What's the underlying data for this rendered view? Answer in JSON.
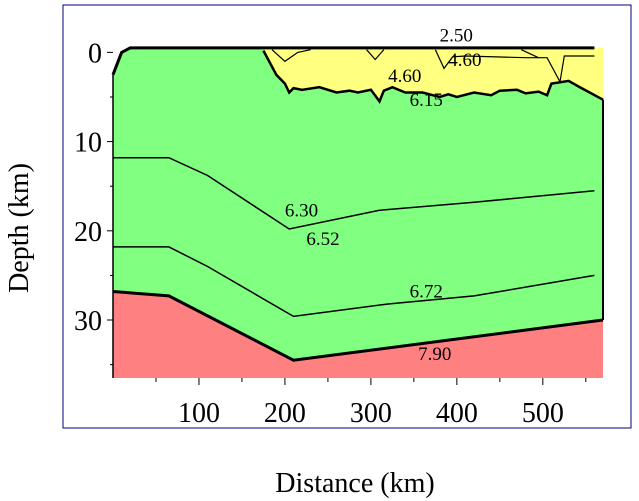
{
  "figure": {
    "xlabel": "Distance (km)",
    "ylabel": "Depth (km)"
  },
  "chart_data": {
    "type": "area",
    "xlabel": "Distance (km)",
    "ylabel": "Depth (km)",
    "xlim": [
      0,
      570
    ],
    "ylim": [
      36.5,
      -1.5
    ],
    "x_ticks": [
      100,
      200,
      300,
      400,
      500
    ],
    "y_ticks": [
      0,
      10,
      20,
      30
    ],
    "y_inverted": true,
    "grid": false,
    "legend": "none",
    "colors": {
      "sediment": "#ffff80",
      "crust": "#80ff80",
      "mantle": "#ff8080"
    },
    "layers": [
      {
        "color": "sediment",
        "top": "surface",
        "velocity_labels": [
          "2.50",
          "4.60",
          "4.60"
        ]
      },
      {
        "color": "crust",
        "velocity_labels": [
          "6.15",
          "6.30",
          "6.52",
          "6.72"
        ]
      },
      {
        "color": "mantle",
        "velocity_labels": [
          "7.90"
        ]
      }
    ],
    "boundaries": [
      {
        "name": "surface",
        "points": [
          [
            0,
            2.5
          ],
          [
            10,
            0
          ],
          [
            20,
            -0.5
          ],
          [
            175,
            -0.5
          ],
          [
            560,
            -0.5
          ]
        ]
      },
      {
        "name": "sediment-base",
        "points": [
          [
            175,
            -0.2
          ],
          [
            190,
            2.5
          ],
          [
            200,
            3.5
          ],
          [
            205,
            4.5
          ],
          [
            210,
            4
          ],
          [
            220,
            4.2
          ],
          [
            240,
            3.9
          ],
          [
            260,
            4.5
          ],
          [
            275,
            4.3
          ],
          [
            285,
            4.5
          ],
          [
            300,
            4.2
          ],
          [
            310,
            5.5
          ],
          [
            315,
            4.3
          ],
          [
            325,
            3.9
          ],
          [
            340,
            4.5
          ],
          [
            360,
            4.5
          ],
          [
            380,
            5
          ],
          [
            390,
            4.7
          ],
          [
            400,
            5
          ],
          [
            420,
            4.5
          ],
          [
            440,
            4.8
          ],
          [
            450,
            4.3
          ],
          [
            470,
            4.2
          ],
          [
            480,
            4.6
          ],
          [
            495,
            4.4
          ],
          [
            505,
            4.8
          ],
          [
            510,
            3.5
          ],
          [
            530,
            3.2
          ],
          [
            545,
            4
          ],
          [
            570,
            5.3
          ]
        ]
      },
      {
        "name": "6.15-6.30",
        "points": [
          [
            0,
            11.8
          ],
          [
            65,
            11.8
          ],
          [
            110,
            13.8
          ],
          [
            205,
            19.8
          ],
          [
            310,
            17.7
          ],
          [
            420,
            16.8
          ],
          [
            560,
            15.5
          ]
        ]
      },
      {
        "name": "6.52-6.72",
        "points": [
          [
            0,
            21.8
          ],
          [
            65,
            21.8
          ],
          [
            110,
            24
          ],
          [
            210,
            29.6
          ],
          [
            320,
            28.2
          ],
          [
            420,
            27.3
          ],
          [
            560,
            25
          ]
        ]
      },
      {
        "name": "moho",
        "points": [
          [
            0,
            26.8
          ],
          [
            65,
            27.3
          ],
          [
            210,
            34.5
          ],
          [
            570,
            30
          ]
        ]
      }
    ],
    "sediment_detail_lines": [
      {
        "points": [
          [
            185,
            -0.3
          ],
          [
            200,
            1
          ],
          [
            215,
            0
          ],
          [
            230,
            -0.3
          ]
        ]
      },
      {
        "points": [
          [
            295,
            -0.3
          ],
          [
            305,
            0.8
          ],
          [
            315,
            -0.3
          ]
        ]
      },
      {
        "points": [
          [
            375,
            -0.3
          ],
          [
            385,
            1.8
          ],
          [
            395,
            0.5
          ],
          [
            410,
            0.4
          ],
          [
            480,
            0.6
          ],
          [
            505,
            0.6
          ],
          [
            520,
            3.3
          ],
          [
            525,
            0.4
          ],
          [
            560,
            0.4
          ]
        ]
      },
      {
        "points": [
          [
            475,
            -0.3
          ],
          [
            495,
            0.6
          ]
        ]
      }
    ],
    "annotations": [
      {
        "text": "2.50",
        "x": 380,
        "y": -1.2
      },
      {
        "text": "4.60",
        "x": 390,
        "y": 1.5
      },
      {
        "text": "4.60",
        "x": 320,
        "y": 3.3
      },
      {
        "text": "6.15",
        "x": 345,
        "y": 6.0
      },
      {
        "text": "6.30",
        "x": 200,
        "y": 18.4
      },
      {
        "text": "6.52",
        "x": 225,
        "y": 21.6
      },
      {
        "text": "6.72",
        "x": 345,
        "y": 27.5
      },
      {
        "text": "7.90",
        "x": 355,
        "y": 34.5
      }
    ]
  }
}
